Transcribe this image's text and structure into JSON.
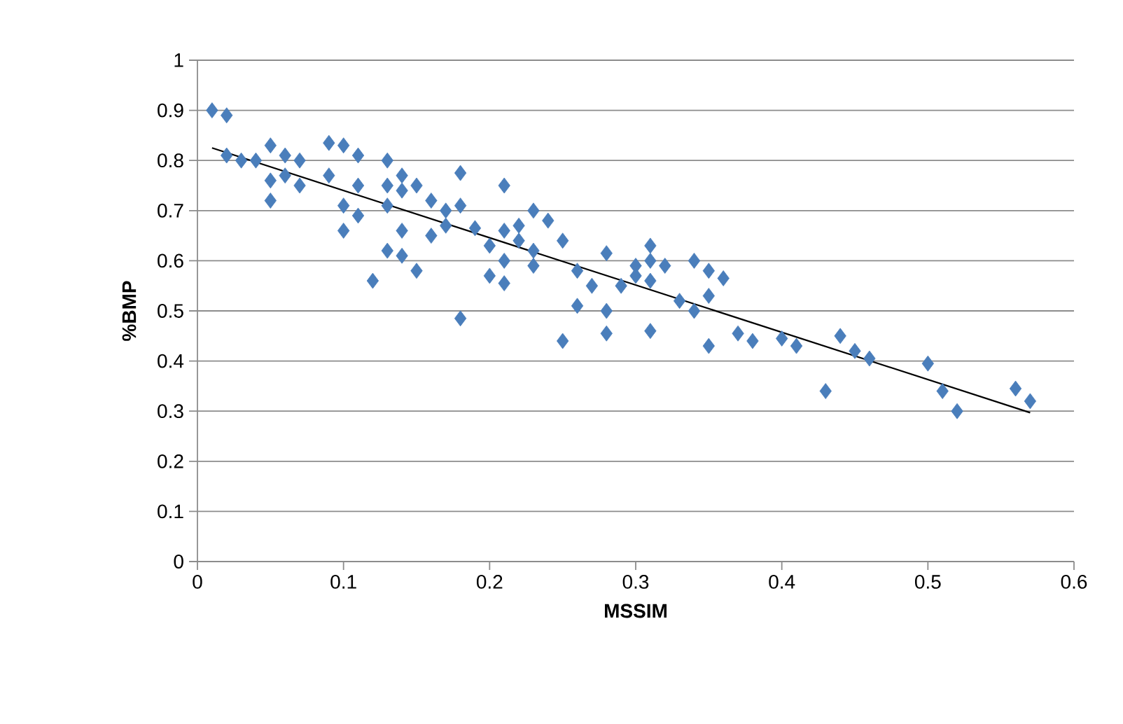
{
  "chart_data": {
    "type": "scatter",
    "xlabel": "MSSIM",
    "ylabel": "%BMP",
    "xlim": [
      0,
      0.6
    ],
    "xticks": [
      0,
      0.1,
      0.2,
      0.3,
      0.4,
      0.5,
      0.6
    ],
    "ylim": [
      0,
      1
    ],
    "yticks": [
      0,
      0.1,
      0.2,
      0.3,
      0.4,
      0.5,
      0.6,
      0.7,
      0.8,
      0.9,
      1
    ],
    "grid": "y",
    "legend": false,
    "marker": "diamond",
    "series": [
      {
        "color": "#4a7ebb",
        "x": [
          0.01,
          0.02,
          0.02,
          0.03,
          0.04,
          0.05,
          0.05,
          0.05,
          0.06,
          0.06,
          0.07,
          0.07,
          0.09,
          0.09,
          0.1,
          0.1,
          0.1,
          0.11,
          0.11,
          0.11,
          0.12,
          0.13,
          0.13,
          0.13,
          0.13,
          0.14,
          0.14,
          0.14,
          0.14,
          0.15,
          0.15,
          0.16,
          0.16,
          0.17,
          0.17,
          0.18,
          0.18,
          0.18,
          0.19,
          0.2,
          0.2,
          0.21,
          0.21,
          0.21,
          0.21,
          0.22,
          0.22,
          0.23,
          0.23,
          0.23,
          0.24,
          0.25,
          0.25,
          0.26,
          0.26,
          0.27,
          0.28,
          0.28,
          0.28,
          0.29,
          0.3,
          0.3,
          0.31,
          0.31,
          0.31,
          0.31,
          0.32,
          0.33,
          0.34,
          0.34,
          0.35,
          0.35,
          0.35,
          0.36,
          0.37,
          0.38,
          0.4,
          0.41,
          0.43,
          0.44,
          0.45,
          0.46,
          0.5,
          0.51,
          0.52,
          0.56,
          0.57
        ],
        "values": [
          0.9,
          0.89,
          0.81,
          0.8,
          0.8,
          0.83,
          0.76,
          0.72,
          0.81,
          0.77,
          0.8,
          0.75,
          0.835,
          0.77,
          0.83,
          0.71,
          0.66,
          0.81,
          0.75,
          0.69,
          0.56,
          0.8,
          0.75,
          0.71,
          0.62,
          0.77,
          0.74,
          0.66,
          0.61,
          0.75,
          0.58,
          0.72,
          0.65,
          0.7,
          0.67,
          0.775,
          0.71,
          0.485,
          0.665,
          0.63,
          0.57,
          0.75,
          0.66,
          0.6,
          0.555,
          0.67,
          0.64,
          0.7,
          0.62,
          0.59,
          0.68,
          0.64,
          0.44,
          0.58,
          0.51,
          0.55,
          0.615,
          0.5,
          0.455,
          0.55,
          0.59,
          0.57,
          0.63,
          0.6,
          0.56,
          0.46,
          0.59,
          0.52,
          0.6,
          0.5,
          0.58,
          0.53,
          0.43,
          0.565,
          0.455,
          0.44,
          0.445,
          0.43,
          0.34,
          0.45,
          0.42,
          0.405,
          0.395,
          0.34,
          0.3,
          0.345,
          0.32
        ]
      },
      {
        "color": "#000000",
        "type": "line",
        "marker": "none",
        "line_style": "solid",
        "x": [
          0.01,
          0.57
        ],
        "values": [
          0.825,
          0.297
        ]
      }
    ]
  }
}
